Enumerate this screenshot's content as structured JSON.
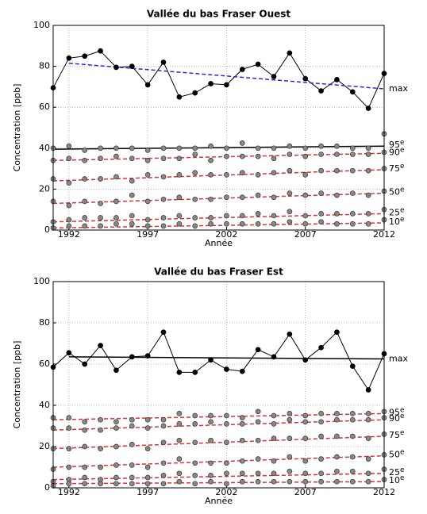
{
  "chart_data": [
    {
      "type": "line",
      "title": "Vallée du bas Fraser Ouest",
      "xlabel": "Année",
      "ylabel": "Concentration [ppb]",
      "xlim": [
        1991,
        2012
      ],
      "xticks": [
        1992,
        1997,
        2002,
        2007,
        2012
      ],
      "ylim": [
        0,
        100
      ],
      "yticks": [
        0,
        20,
        40,
        60,
        80,
        100
      ],
      "grid": true,
      "suffix": "e",
      "x": [
        1991,
        1992,
        1993,
        1994,
        1995,
        1996,
        1997,
        1998,
        1999,
        2000,
        2001,
        2002,
        2003,
        2004,
        2005,
        2006,
        2007,
        2008,
        2009,
        2010,
        2011,
        2012
      ],
      "series": [
        {
          "name": "max",
          "style": "line",
          "color": "#000000",
          "values": [
            69.5,
            84,
            85,
            87.5,
            79.5,
            80,
            71,
            82,
            65,
            67,
            71.5,
            71,
            78.5,
            81,
            75,
            86.5,
            74,
            68,
            73.5,
            67.5,
            59.5,
            76.5
          ],
          "trend": {
            "x": [
              1992,
              2012
            ],
            "values": [
              81.5,
              69
            ],
            "color": "#1f2fd0",
            "dashed": true
          }
        },
        {
          "name": "95",
          "style": "scatter",
          "color": "#888888",
          "values": [
            40,
            41,
            39,
            40,
            40,
            40,
            39,
            40,
            40,
            40,
            41,
            40,
            42.5,
            40,
            40,
            41,
            40,
            41,
            41,
            40,
            40,
            47
          ],
          "trend": {
            "x": [
              1991,
              2012
            ],
            "values": [
              39.5,
              41
            ],
            "color": "#000000",
            "dashed": false
          }
        },
        {
          "name": "90",
          "style": "scatter",
          "color": "#888888",
          "values": [
            34,
            35,
            34,
            35,
            36,
            35,
            34,
            35,
            35,
            37,
            34,
            36,
            36,
            36,
            35,
            37,
            36,
            37,
            37,
            37,
            37,
            38
          ],
          "trend": {
            "x": [
              1991,
              2012
            ],
            "values": [
              34,
              37.5
            ],
            "color": "#e03030",
            "dashed": true
          }
        },
        {
          "name": "75",
          "style": "scatter",
          "color": "#888888",
          "values": [
            25,
            23,
            25,
            25,
            26,
            24,
            27,
            26,
            27,
            28,
            27,
            27,
            28,
            27,
            28,
            29,
            27,
            29,
            29,
            29,
            29,
            30
          ],
          "trend": {
            "x": [
              1991,
              2012
            ],
            "values": [
              24,
              29.5
            ],
            "color": "#e03030",
            "dashed": true
          }
        },
        {
          "name": "50",
          "style": "scatter",
          "color": "#888888",
          "values": [
            14,
            12,
            14,
            13,
            14,
            17,
            14,
            15,
            16,
            15,
            15,
            16,
            16,
            17,
            16,
            18,
            17,
            18,
            17,
            18,
            17,
            19
          ],
          "trend": {
            "x": [
              1991,
              2012
            ],
            "values": [
              13,
              18
            ],
            "color": "#e03030",
            "dashed": true
          }
        },
        {
          "name": "25",
          "style": "scatter",
          "color": "#888888",
          "values": [
            4,
            5,
            6,
            6,
            6,
            7,
            5,
            6,
            7,
            6,
            6,
            7,
            7,
            8,
            7,
            9,
            7,
            8,
            8,
            8,
            8,
            10
          ],
          "trend": {
            "x": [
              1991,
              2012
            ],
            "values": [
              4,
              8
            ],
            "color": "#e03030",
            "dashed": true
          }
        },
        {
          "name": "10",
          "style": "scatter",
          "color": "#888888",
          "values": [
            1,
            2,
            2,
            2,
            3,
            3,
            2,
            2,
            3,
            2,
            3,
            3,
            3,
            3,
            3,
            4,
            3,
            4,
            3,
            3,
            3,
            5
          ],
          "trend": {
            "x": [
              1991,
              2012
            ],
            "values": [
              1,
              3.5
            ],
            "color": "#e03030",
            "dashed": true
          }
        }
      ]
    },
    {
      "type": "line",
      "title": "Vallée du bas Fraser Est",
      "xlabel": "Année",
      "ylabel": "Concentration [ppb]",
      "xlim": [
        1991,
        2012
      ],
      "xticks": [
        1992,
        1997,
        2002,
        2007,
        2012
      ],
      "ylim": [
        0,
        100
      ],
      "yticks": [
        0,
        20,
        40,
        60,
        80,
        100
      ],
      "grid": true,
      "suffix": "e",
      "x": [
        1991,
        1992,
        1993,
        1994,
        1995,
        1996,
        1997,
        1998,
        1999,
        2000,
        2001,
        2002,
        2003,
        2004,
        2005,
        2006,
        2007,
        2008,
        2009,
        2010,
        2011,
        2012
      ],
      "series": [
        {
          "name": "max",
          "style": "line",
          "color": "#000000",
          "values": [
            58.5,
            65.5,
            60,
            69,
            57,
            63.5,
            64,
            75.5,
            56,
            56,
            62,
            57.5,
            56.5,
            67,
            63.5,
            74.5,
            62,
            68,
            75.5,
            59,
            47.5,
            65
          ],
          "trend": {
            "x": [
              1992,
              2012
            ],
            "values": [
              63.5,
              62.5
            ],
            "color": "#000000",
            "dashed": false
          }
        },
        {
          "name": "95",
          "style": "scatter",
          "color": "#888888",
          "values": [
            34,
            34,
            32,
            33,
            32,
            33,
            33,
            33,
            36,
            35,
            35,
            35,
            34,
            37,
            35,
            36,
            35,
            36,
            36,
            36,
            36,
            37
          ],
          "trend": {
            "x": [
              1991,
              2012
            ],
            "values": [
              33,
              36
            ],
            "color": "#e03030",
            "dashed": true
          }
        },
        {
          "name": "90",
          "style": "scatter",
          "color": "#888888",
          "values": [
            29,
            29,
            28,
            28,
            29,
            30,
            29,
            30,
            31,
            31,
            32,
            31,
            31,
            32,
            31,
            33,
            32,
            32,
            33,
            33,
            33,
            34
          ],
          "trend": {
            "x": [
              1991,
              2012
            ],
            "values": [
              28,
              33
            ],
            "color": "#e03030",
            "dashed": true
          }
        },
        {
          "name": "75",
          "style": "scatter",
          "color": "#888888",
          "values": [
            19,
            19,
            20,
            19,
            20,
            21,
            19,
            22,
            23,
            22,
            23,
            22,
            23,
            23,
            24,
            24,
            24,
            25,
            25,
            25,
            24,
            26
          ],
          "trend": {
            "x": [
              1991,
              2012
            ],
            "values": [
              19,
              25
            ],
            "color": "#e03030",
            "dashed": true
          }
        },
        {
          "name": "50",
          "style": "scatter",
          "color": "#888888",
          "values": [
            9,
            10,
            10,
            10,
            11,
            11,
            10,
            12,
            14,
            12,
            12,
            12,
            13,
            14,
            13,
            15,
            13,
            14,
            15,
            15,
            14,
            16
          ],
          "trend": {
            "x": [
              1991,
              2012
            ],
            "values": [
              10,
              15.5
            ],
            "color": "#e03030",
            "dashed": true
          }
        },
        {
          "name": "25",
          "style": "scatter",
          "color": "#888888",
          "values": [
            3,
            4,
            5,
            4,
            5,
            5,
            5,
            6,
            7,
            6,
            6,
            7,
            7,
            7,
            7,
            8,
            7,
            7,
            8,
            8,
            7,
            9
          ],
          "trend": {
            "x": [
              1991,
              2012
            ],
            "values": [
              4,
              7
            ],
            "color": "#e03030",
            "dashed": true
          }
        },
        {
          "name": "10",
          "style": "scatter",
          "color": "#888888",
          "values": [
            1,
            2,
            2,
            2,
            2,
            2,
            2,
            2,
            3,
            2,
            3,
            2,
            3,
            3,
            3,
            3,
            3,
            3,
            3,
            3,
            3,
            4
          ],
          "trend": {
            "x": [
              1991,
              2012
            ],
            "values": [
              2,
              3
            ],
            "color": "#e03030",
            "dashed": true
          }
        }
      ]
    }
  ]
}
